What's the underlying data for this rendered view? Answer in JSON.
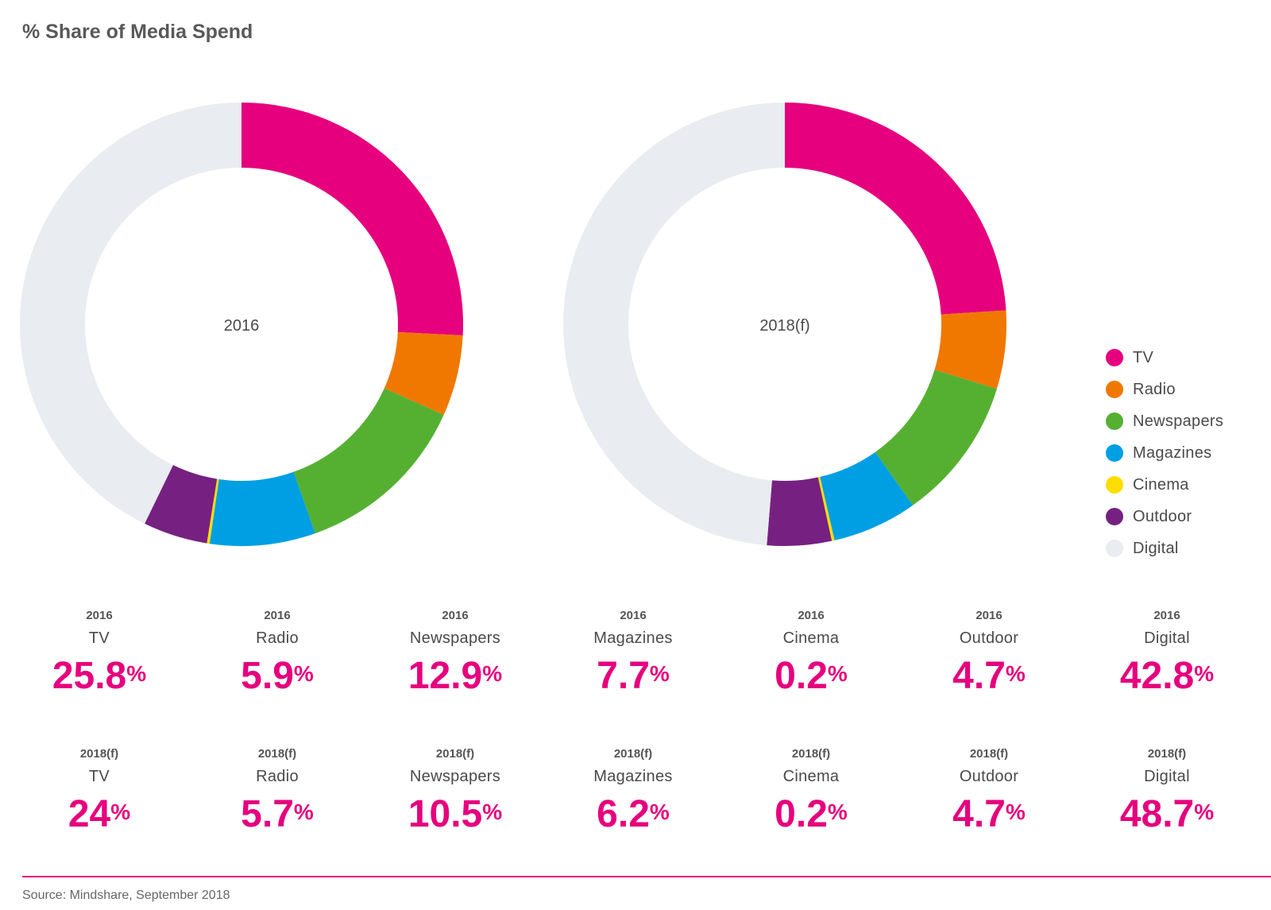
{
  "title": "% Share of Media Spend",
  "source": "Source: Mindshare, September 2018",
  "chart_data": [
    {
      "type": "pie",
      "center_label": "2016",
      "categories": [
        "TV",
        "Radio",
        "Newspapers",
        "Magazines",
        "Cinema",
        "Outdoor",
        "Digital"
      ],
      "values": [
        25.8,
        5.9,
        12.9,
        7.7,
        0.2,
        4.7,
        42.8
      ],
      "value_labels": [
        "25.8",
        "5.9",
        "12.9",
        "7.7",
        "0.2",
        "4.7",
        "42.8"
      ],
      "unit": "%"
    },
    {
      "type": "pie",
      "center_label": "2018(f)",
      "categories": [
        "TV",
        "Radio",
        "Newspapers",
        "Magazines",
        "Cinema",
        "Outdoor",
        "Digital"
      ],
      "values": [
        24,
        5.7,
        10.5,
        6.2,
        0.2,
        4.7,
        48.7
      ],
      "value_labels": [
        "24",
        "5.7",
        "10.5",
        "6.2",
        "0.2",
        "4.7",
        "48.7"
      ],
      "unit": "%"
    }
  ],
  "legend": [
    {
      "label": "TV",
      "color": "#e6007e"
    },
    {
      "label": "Radio",
      "color": "#f07800"
    },
    {
      "label": "Newspapers",
      "color": "#55b032"
    },
    {
      "label": "Magazines",
      "color": "#009fe3"
    },
    {
      "label": "Cinema",
      "color": "#ffdd00"
    },
    {
      "label": "Outdoor",
      "color": "#762181"
    },
    {
      "label": "Digital",
      "color": "#e9ecf0"
    }
  ]
}
